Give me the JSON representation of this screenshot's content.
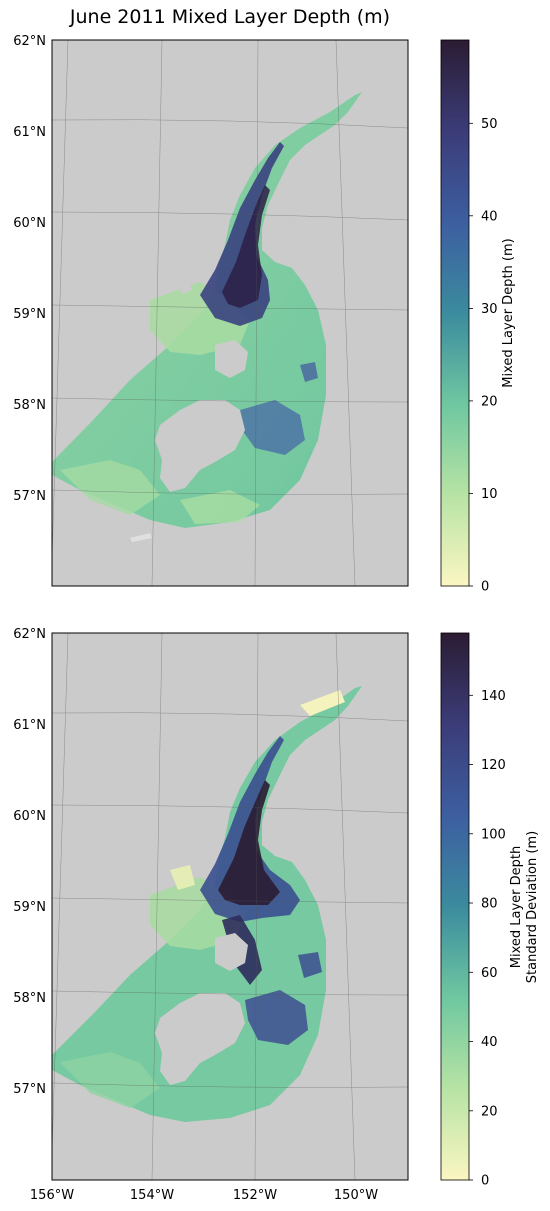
{
  "title": "June 2011 Mixed Layer Depth (m)",
  "panels": [
    {
      "name": "mean",
      "lat_labels": [
        "62°N",
        "61°N",
        "60°N",
        "59°N",
        "58°N",
        "57°N"
      ],
      "colorbar": {
        "label_lines": [
          "Mixed Layer Depth (m)"
        ],
        "ticks": [
          "0",
          "10",
          "20",
          "30",
          "40",
          "50"
        ],
        "min": 0,
        "max": 59
      }
    },
    {
      "name": "stddev",
      "lat_labels": [
        "62°N",
        "61°N",
        "60°N",
        "59°N",
        "58°N",
        "57°N"
      ],
      "lon_labels": [
        "156°W",
        "154°W",
        "152°W",
        "150°W"
      ],
      "colorbar": {
        "label_lines": [
          "Mixed Layer Depth",
          "Standard Deviation (m)"
        ],
        "ticks": [
          "0",
          "20",
          "40",
          "60",
          "80",
          "100",
          "120",
          "140"
        ],
        "min": 0,
        "max": 158
      }
    }
  ],
  "colors": {
    "land": "#cbcbcb",
    "colormap": [
      "#fbf6c2",
      "#b7e3a4",
      "#6ec7a0",
      "#3b8b9e",
      "#3d5ea0",
      "#3b3c78",
      "#2b1c33"
    ]
  }
}
